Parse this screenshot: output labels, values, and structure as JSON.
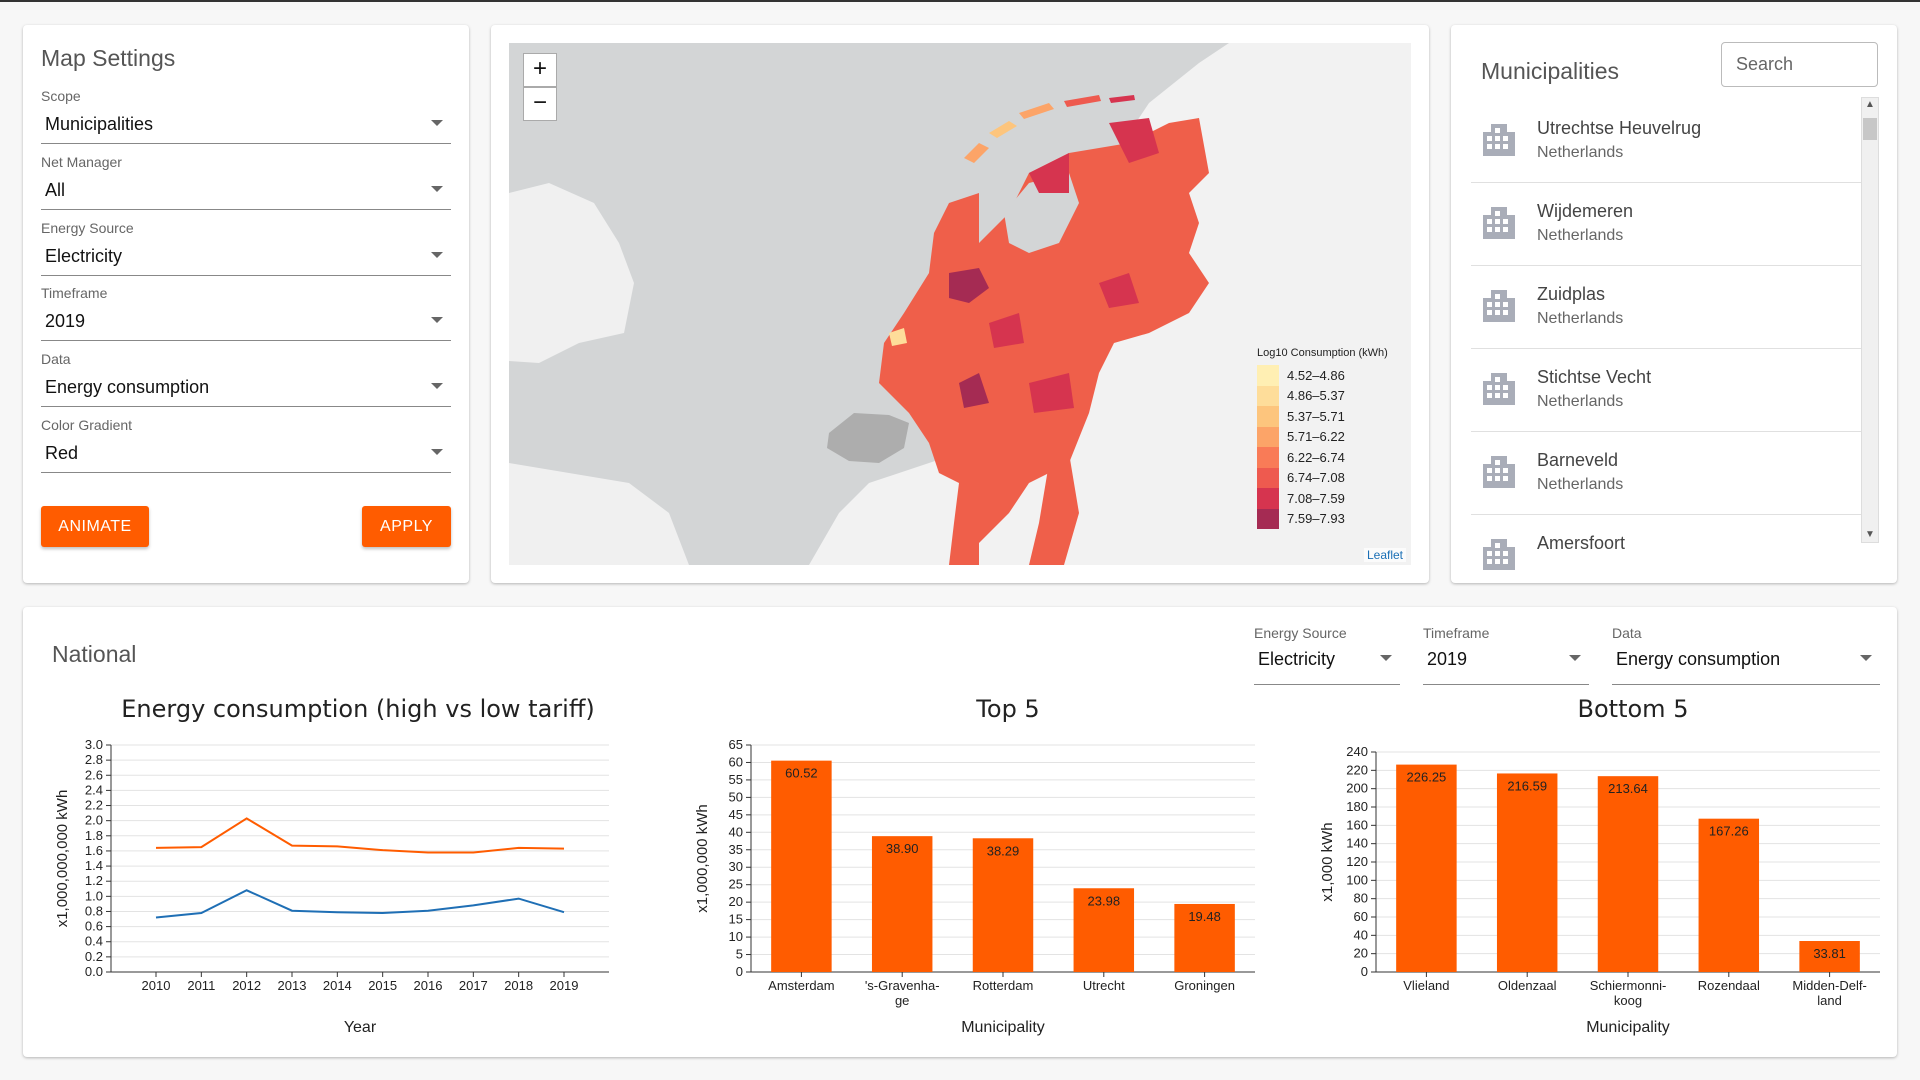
{
  "settings": {
    "title": "Map Settings",
    "fields": [
      {
        "label": "Scope",
        "value": "Municipalities"
      },
      {
        "label": "Net Manager",
        "value": "All"
      },
      {
        "label": "Energy Source",
        "value": "Electricity"
      },
      {
        "label": "Timeframe",
        "value": "2019"
      },
      {
        "label": "Data",
        "value": "Energy consumption"
      },
      {
        "label": "Color Gradient",
        "value": "Red"
      }
    ],
    "animate_label": "ANIMATE",
    "apply_label": "APPLY"
  },
  "map": {
    "zoom_in": "+",
    "zoom_out": "−",
    "legend_title": "Log10 Consumption (kWh)",
    "legend": [
      {
        "label": "4.52–4.86",
        "color": "#ffefb3"
      },
      {
        "label": "4.86–5.37",
        "color": "#fedd9a"
      },
      {
        "label": "5.37–5.71",
        "color": "#fdc57d"
      },
      {
        "label": "5.71–6.22",
        "color": "#fca468"
      },
      {
        "label": "6.22–6.74",
        "color": "#f97b57"
      },
      {
        "label": "6.74–7.08",
        "color": "#ee5a4f"
      },
      {
        "label": "7.08–7.59",
        "color": "#d6344f"
      },
      {
        "label": "7.59–7.93",
        "color": "#a52b53"
      }
    ],
    "attribution": "Leaflet"
  },
  "municipalities": {
    "title": "Municipalities",
    "search_placeholder": "Search",
    "items": [
      {
        "name": "Utrechtse Heuvelrug",
        "country": "Netherlands"
      },
      {
        "name": "Wijdemeren",
        "country": "Netherlands"
      },
      {
        "name": "Zuidplas",
        "country": "Netherlands"
      },
      {
        "name": "Stichtse Vecht",
        "country": "Netherlands"
      },
      {
        "name": "Barneveld",
        "country": "Netherlands"
      },
      {
        "name": "Amersfoort",
        "country": ""
      }
    ]
  },
  "national": {
    "title": "National",
    "energy_source": {
      "label": "Energy Source",
      "value": "Electricity"
    },
    "timeframe": {
      "label": "Timeframe",
      "value": "2019"
    },
    "data": {
      "label": "Data",
      "value": "Energy consumption"
    }
  },
  "colors": {
    "accent": "#ff5c00",
    "line_blue": "#1f6fb5"
  },
  "chart_data": [
    {
      "type": "line",
      "title": "Energy consumption (high vs low tariff)",
      "xlabel": "Year",
      "ylabel": "x1,000,000,000 kWh",
      "x": [
        2010,
        2011,
        2012,
        2013,
        2014,
        2015,
        2016,
        2017,
        2018,
        2019
      ],
      "ylim": [
        0,
        3.0
      ],
      "yticks": [
        0.0,
        0.2,
        0.4,
        0.6,
        0.8,
        1.0,
        1.2,
        1.4,
        1.6,
        1.8,
        2.0,
        2.2,
        2.4,
        2.6,
        2.8,
        3.0
      ],
      "grid": true,
      "series": [
        {
          "color": "#ff5c00",
          "values": [
            1.64,
            1.65,
            2.03,
            1.67,
            1.66,
            1.61,
            1.58,
            1.58,
            1.64,
            1.63
          ]
        },
        {
          "color": "#1f6fb5",
          "values": [
            0.72,
            0.78,
            1.08,
            0.81,
            0.79,
            0.78,
            0.81,
            0.88,
            0.97,
            0.79
          ]
        }
      ]
    },
    {
      "type": "bar",
      "title": "Top 5",
      "xlabel": "Municipality",
      "ylabel": "x1,000,000 kWh",
      "categories": [
        "Amsterdam",
        "'s-Gravenha-ge",
        "Rotterdam",
        "Utrecht",
        "Groningen"
      ],
      "values": [
        60.52,
        38.9,
        38.29,
        23.98,
        19.48
      ],
      "value_labels": [
        "60.52",
        "38.90",
        "38.29",
        "23.98",
        "19.48"
      ],
      "ylim": [
        0,
        65
      ],
      "yticks": [
        0,
        5,
        10,
        15,
        20,
        25,
        30,
        35,
        40,
        45,
        50,
        55,
        60,
        65
      ],
      "grid": true
    },
    {
      "type": "bar",
      "title": "Bottom 5",
      "xlabel": "Municipality",
      "ylabel": "x1,000 kWh",
      "categories": [
        "Vlieland",
        "Oldenzaal",
        "Schiermonni-koog",
        "Rozendaal",
        "Midden-Delf-land"
      ],
      "values": [
        226.25,
        216.59,
        213.64,
        167.26,
        33.81
      ],
      "value_labels": [
        "226.25",
        "216.59",
        "213.64",
        "167.26",
        "33.81"
      ],
      "ylim": [
        0,
        240
      ],
      "yticks": [
        0,
        20,
        40,
        60,
        80,
        100,
        120,
        140,
        160,
        180,
        200,
        220,
        240
      ],
      "grid": true
    }
  ]
}
